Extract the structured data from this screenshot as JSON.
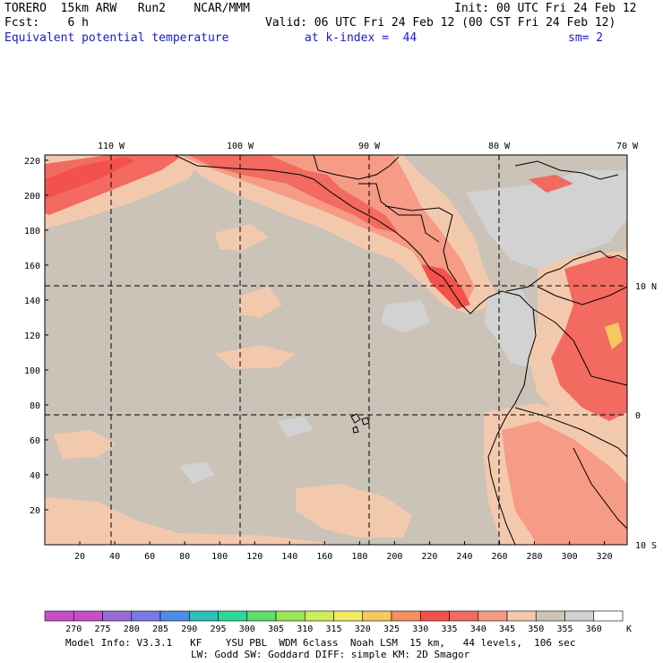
{
  "header": {
    "model": "TORERO  15km ARW   Run2    NCAR/MMM",
    "init": "Init: 00 UTC Fri 24 Feb 12",
    "fcst": "Fcst:    6 h",
    "valid": "Valid: 06 UTC Fri 24 Feb 12 (00 CST Fri 24 Feb 12)",
    "field": "Equivalent potential temperature",
    "kindex": "at k-index =  44",
    "sm": "sm= 2"
  },
  "map": {
    "lon_labels": [
      "110 W",
      "100 W",
      "90 W",
      "80 W",
      "70 W"
    ],
    "lat_labels": [
      "10 N",
      "0",
      "10 S"
    ],
    "x_ticks": [
      "20",
      "40",
      "60",
      "80",
      "100",
      "120",
      "140",
      "160",
      "180",
      "200",
      "220",
      "240",
      "260",
      "280",
      "300",
      "320"
    ],
    "y_ticks": [
      "220",
      "200",
      "180",
      "160",
      "140",
      "120",
      "100",
      "80",
      "60",
      "40",
      "20"
    ],
    "x_range": [
      0,
      333
    ],
    "y_range": [
      0,
      223
    ],
    "background_color": "#cbc2b8"
  },
  "colorbar": {
    "labels": [
      "270",
      "275",
      "280",
      "285",
      "290",
      "295",
      "300",
      "305",
      "310",
      "315",
      "320",
      "325",
      "330",
      "335",
      "340",
      "345",
      "350",
      "355",
      "360"
    ],
    "unit": "K",
    "colors": [
      "#c64fc8",
      "#9a6ad8",
      "#7a78e8",
      "#4d8de8",
      "#2ec0b8",
      "#2ed89a",
      "#5de06a",
      "#9ae65a",
      "#cdee5a",
      "#f2ec62",
      "#f6c860",
      "#f3915e",
      "#f3514c",
      "#f26a60",
      "#f69b86",
      "#f3c9ae",
      "#cdc4b8",
      "#d2d2d2",
      "#ffffff"
    ]
  },
  "footer": {
    "line1": "Model Info: V3.3.1   KF    YSU PBL  WDM 6class  Noah LSM  15 km,   44 levels,  106 sec",
    "line2": "LW: Godd SW: Goddard DIFF: simple KM: 2D Smagor"
  }
}
